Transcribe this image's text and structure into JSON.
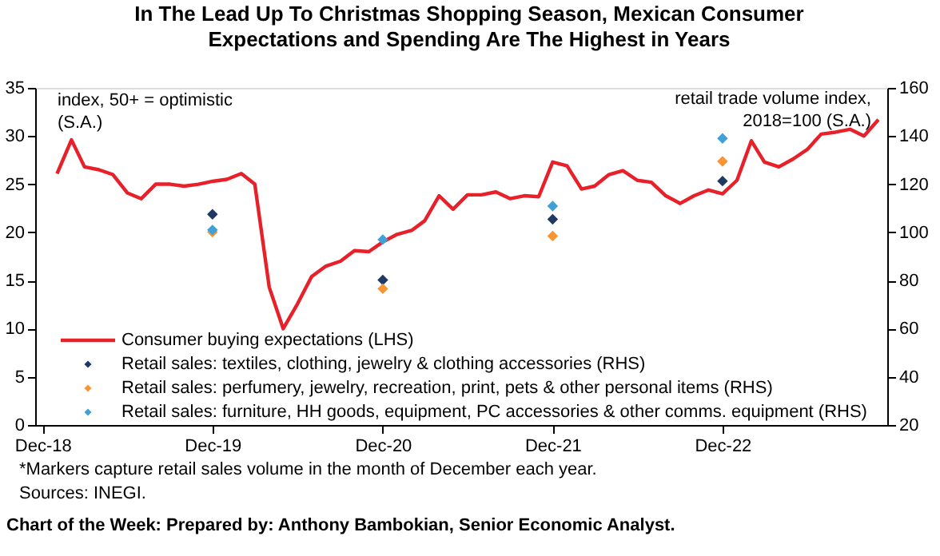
{
  "chart_data": {
    "type": "line",
    "title": "In The Lead Up To Christmas Shopping Season, Mexican Consumer Expectations and Spending Are The Highest in Years",
    "ylabel": "index, 50+ = optimistic\n(S.A.)",
    "y2label": "retail trade volume index,\n2018=100 (S.A.)",
    "annotations": [
      "*Markers capture retail sales volume in the month of December each year.",
      "Sources: INEGI.",
      "Chart of the Week: Prepared by: Anthony Bambokian, Senior Economic Analyst."
    ],
    "series": [
      {
        "name": "Consumer buying expectations (LHS)",
        "axis": "y",
        "color": "#e8202a",
        "line_style": "solid",
        "marker": "none",
        "x": [
          "2019-01",
          "2019-02",
          "2019-03",
          "2019-04",
          "2019-05",
          "2019-06",
          "2019-07",
          "2019-08",
          "2019-09",
          "2019-10",
          "2019-11",
          "2019-12",
          "2020-01",
          "2020-02",
          "2020-03",
          "2020-04",
          "2020-05",
          "2020-06",
          "2020-07",
          "2020-08",
          "2020-09",
          "2020-10",
          "2020-11",
          "2020-12",
          "2021-01",
          "2021-02",
          "2021-03",
          "2021-04",
          "2021-05",
          "2021-06",
          "2021-07",
          "2021-08",
          "2021-09",
          "2021-10",
          "2021-11",
          "2021-12",
          "2022-01",
          "2022-02",
          "2022-03",
          "2022-04",
          "2022-05",
          "2022-06",
          "2022-07",
          "2022-08",
          "2022-09",
          "2022-10",
          "2022-11",
          "2022-12",
          "2023-01",
          "2023-02",
          "2023-03",
          "2023-04",
          "2023-05",
          "2023-06",
          "2023-07",
          "2023-08",
          "2023-09",
          "2023-10",
          "2023-11"
        ],
        "values": [
          26.1,
          29.6,
          26.8,
          26.5,
          26.0,
          24.1,
          23.5,
          25.0,
          25.0,
          24.8,
          25.0,
          25.3,
          25.5,
          26.1,
          25.0,
          14.3,
          10.0,
          12.6,
          15.4,
          16.5,
          17.0,
          18.1,
          18.0,
          19.0,
          19.8,
          20.2,
          21.2,
          23.8,
          22.4,
          23.9,
          23.9,
          24.2,
          23.5,
          23.8,
          23.7,
          27.3,
          26.9,
          24.5,
          24.8,
          26.0,
          26.4,
          25.4,
          25.2,
          23.8,
          23.0,
          23.8,
          24.4,
          24.0,
          25.4,
          29.5,
          27.3,
          26.8,
          27.6,
          28.6,
          30.2,
          30.4,
          30.7,
          30.0,
          31.7
        ]
      },
      {
        "name": "Retail sales: textiles, clothing, jewelry & clothing accessories (RHS)",
        "type": "scatter",
        "axis": "y2",
        "color": "#1f3864",
        "marker": "diamond",
        "x": [
          "2019-12",
          "2020-12",
          "2021-12",
          "2022-12"
        ],
        "values": [
          107.5,
          80.2,
          105.4,
          121.3
        ]
      },
      {
        "name": "Retail sales: perfumery, jewelry, recreation, print, pets & other personal items (RHS)",
        "type": "scatter",
        "axis": "y2",
        "color": "#f79433",
        "marker": "diamond",
        "x": [
          "2019-12",
          "2020-12",
          "2021-12",
          "2022-12"
        ],
        "values": [
          100.1,
          76.6,
          98.5,
          129.5
        ]
      },
      {
        "name": "Retail sales: furniture, HH goods, equipment, PC accessories & other comms. equipment (RHS)",
        "type": "scatter",
        "axis": "y2",
        "color": "#41a0d8",
        "marker": "diamond",
        "x": [
          "2019-12",
          "2020-12",
          "2021-12",
          "2022-12"
        ],
        "values": [
          101.0,
          97.0,
          110.9,
          139.0
        ]
      }
    ],
    "xlim": [
      "2018-11-15",
      "2023-11-20"
    ],
    "xticks": [
      {
        "value": "2018-12",
        "label": "Dec-18"
      },
      {
        "value": "2019-12",
        "label": "Dec-19"
      },
      {
        "value": "2020-12",
        "label": "Dec-20"
      },
      {
        "value": "2021-12",
        "label": "Dec-21"
      },
      {
        "value": "2022-12",
        "label": "Dec-22"
      }
    ],
    "ylim": [
      0,
      35
    ],
    "yticks": [
      0,
      5,
      10,
      15,
      20,
      25,
      30,
      35
    ],
    "y2lim": [
      20,
      160
    ],
    "y2ticks": [
      20,
      40,
      60,
      80,
      100,
      120,
      140,
      160
    ],
    "grid": false,
    "legend": "bottom left"
  }
}
